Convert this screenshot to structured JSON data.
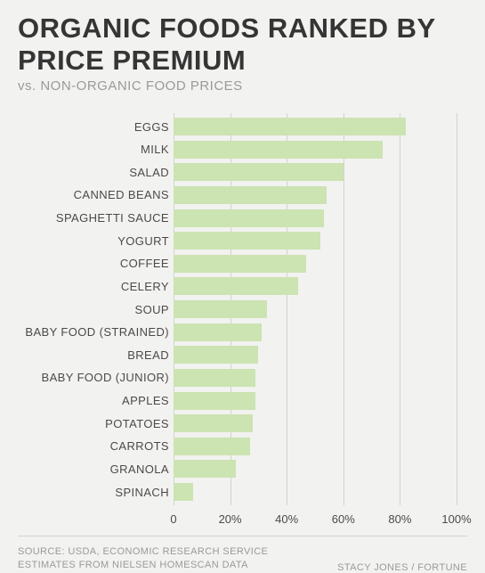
{
  "title": "ORGANIC FOODS RANKED BY PRICE PREMIUM",
  "subtitle": "vs. NON-ORGANIC FOOD PRICES",
  "chart": {
    "type": "bar-horizontal",
    "bar_color": "#cce3b2",
    "background_color": "#f2f2f0",
    "grid_color": "#d2d2cf",
    "label_color": "#4a4a4a",
    "label_fontsize": 13,
    "xlim": [
      0,
      100
    ],
    "xticks": [
      0,
      20,
      40,
      60,
      80,
      100
    ],
    "xtick_labels": [
      "0",
      "20%",
      "40%",
      "60%",
      "80%",
      "100%"
    ],
    "items": [
      {
        "label": "EGGS",
        "value": 82
      },
      {
        "label": "MILK",
        "value": 74
      },
      {
        "label": "SALAD",
        "value": 60
      },
      {
        "label": "CANNED BEANS",
        "value": 54
      },
      {
        "label": "SPAGHETTI SAUCE",
        "value": 53
      },
      {
        "label": "YOGURT",
        "value": 52
      },
      {
        "label": "COFFEE",
        "value": 47
      },
      {
        "label": "CELERY",
        "value": 44
      },
      {
        "label": "SOUP",
        "value": 33
      },
      {
        "label": "BABY FOOD (STRAINED)",
        "value": 31
      },
      {
        "label": "BREAD",
        "value": 30
      },
      {
        "label": "BABY FOOD (JUNIOR)",
        "value": 29
      },
      {
        "label": "APPLES",
        "value": 29
      },
      {
        "label": "POTATOES",
        "value": 28
      },
      {
        "label": "CARROTS",
        "value": 27
      },
      {
        "label": "GRANOLA",
        "value": 22
      },
      {
        "label": "SPINACH",
        "value": 7
      }
    ]
  },
  "footer": {
    "source_line1": "SOURCE: USDA, ECONOMIC RESEARCH SERVICE",
    "source_line2": "ESTIMATES FROM NIELSEN HOMESCAN DATA",
    "credit": "STACY JONES / FORTUNE"
  }
}
